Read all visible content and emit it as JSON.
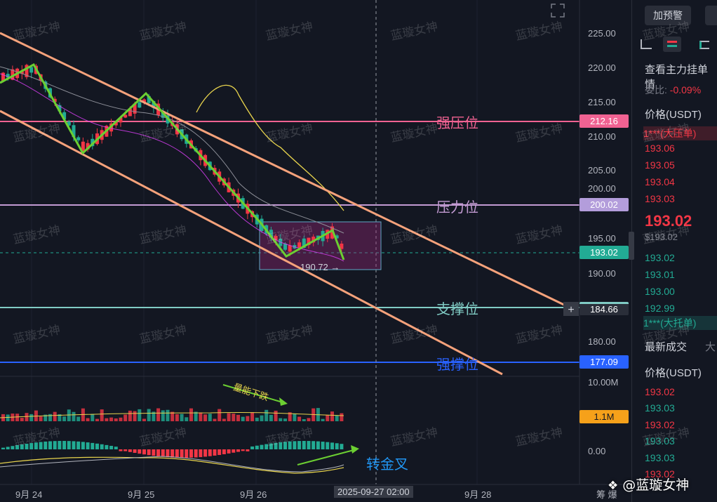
{
  "watermark_text": "蓝璇女神",
  "price_axis": {
    "ticks": [
      "225.00",
      "220.00",
      "215.00",
      "210.00",
      "205.00",
      "200.00",
      "195.00",
      "190.00",
      "180.00",
      "10.00M",
      "0.00"
    ],
    "tags": {
      "strong_resistance": "212.16",
      "resistance": "200.02",
      "current": "193.02",
      "support": "184.66",
      "strong_support": "177.09",
      "volume": "1.1M"
    }
  },
  "levels": {
    "strong_resistance": "强压位",
    "resistance": "压力位",
    "support": "支撑位",
    "strong_support": "强撑位"
  },
  "annotations": {
    "low_label": "190.72",
    "volume_note": "量能下跌",
    "macd_note": "转金叉"
  },
  "time_axis": {
    "dates": [
      "9月 24",
      "9月 25",
      "9月 26",
      "9月 28"
    ],
    "crosshair_time": "2025-09-27 02:00",
    "tail_text": "筹 爆"
  },
  "footer_brand": "@蓝璇女神",
  "side_panel": {
    "alert_button": "加预警",
    "order_title": "查看主力挂单情",
    "ratio_label": "委比:",
    "ratio_value": "-0.09%",
    "price_header": "价格(USDT)",
    "big_sell": "1***(大压单)",
    "asks": [
      "193.06",
      "193.05",
      "193.04",
      "193.03"
    ],
    "last_price": "193.02",
    "last_price_sub": "$193.02",
    "bids": [
      "193.02",
      "193.01",
      "193.00",
      "192.99"
    ],
    "big_buy": "1***(大托单)",
    "trades_tab": "最新成交",
    "trades_tab2": "大",
    "trades_header": "价格(USDT)",
    "trades": [
      "193.02",
      "193.03",
      "193.02",
      "193.03",
      "193.03",
      "193.02"
    ]
  },
  "colors": {
    "up": "#22ab94",
    "down": "#f23645",
    "strong_resistance": "#f06292",
    "resistance": "#c39bd3",
    "support": "#80cbc4",
    "strong_support": "#2962ff",
    "channel": "#f6a27b",
    "zigzag": "#6ccf32"
  }
}
